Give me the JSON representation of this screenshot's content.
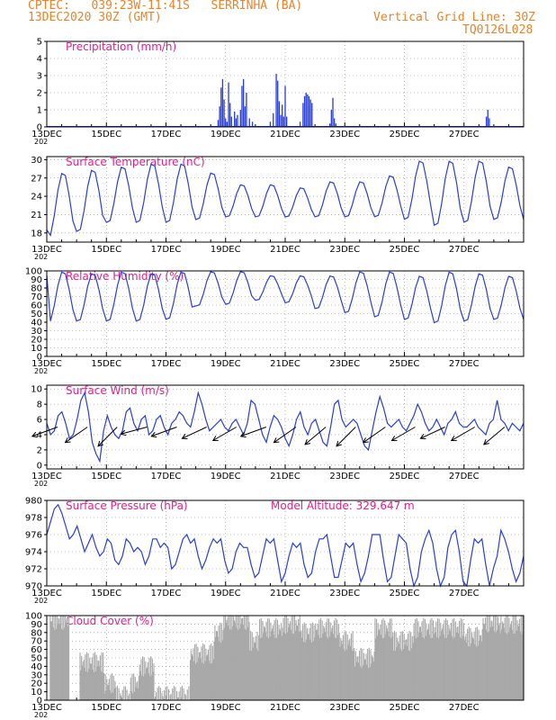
{
  "header": {
    "line1_left": "CPTEC:   039:23W-11:41S   SERRINHA (BA)",
    "line2_left": "13DEC2020 30Z (GMT)",
    "line2_right": "Vertical Grid Line: 30Z",
    "line3_right": "TQ0126L028"
  },
  "x_tick_labels": [
    "13DEC",
    "15DEC",
    "17DEC",
    "19DEC",
    "21DEC",
    "23DEC",
    "25DEC",
    "27DEC"
  ],
  "x_tick_sub": "202",
  "colors": {
    "line": "#2a3ed8",
    "bar": "#2a3ed8",
    "cloud": "#a8a8a8",
    "title": "#e0208a",
    "header": "#e8832a",
    "arrow": "#000000"
  },
  "chart_data": [
    {
      "type": "bar",
      "title": "Precipitation (mm/h)",
      "ylim": [
        0,
        5
      ],
      "yticks": [
        0,
        1,
        2,
        3,
        4,
        5
      ],
      "x_unit": "days since 13DEC 06Z",
      "points": [
        [
          5.75,
          0.4
        ],
        [
          5.8,
          1.2
        ],
        [
          5.85,
          2.3
        ],
        [
          5.9,
          2.8
        ],
        [
          5.95,
          1.6
        ],
        [
          6.0,
          0.5
        ],
        [
          6.05,
          0.3
        ],
        [
          6.1,
          2.6
        ],
        [
          6.15,
          1.4
        ],
        [
          6.2,
          0.6
        ],
        [
          6.3,
          0.9
        ],
        [
          6.35,
          0.5
        ],
        [
          6.4,
          0.7
        ],
        [
          6.5,
          1.0
        ],
        [
          6.55,
          2.4
        ],
        [
          6.6,
          2.8
        ],
        [
          6.65,
          1.2
        ],
        [
          6.7,
          2.0
        ],
        [
          6.8,
          0.5
        ],
        [
          6.9,
          0.3
        ],
        [
          7.5,
          0.3
        ],
        [
          7.6,
          0.8
        ],
        [
          7.7,
          3.1
        ],
        [
          7.75,
          2.7
        ],
        [
          7.8,
          1.5
        ],
        [
          7.85,
          0.7
        ],
        [
          7.9,
          1.3
        ],
        [
          7.95,
          0.6
        ],
        [
          8.0,
          2.4
        ],
        [
          8.05,
          0.6
        ],
        [
          8.5,
          0.3
        ],
        [
          8.6,
          1.4
        ],
        [
          8.65,
          1.8
        ],
        [
          8.7,
          2.0
        ],
        [
          8.75,
          1.9
        ],
        [
          8.8,
          1.8
        ],
        [
          8.85,
          1.6
        ],
        [
          8.9,
          1.4
        ],
        [
          9.5,
          0.2
        ],
        [
          9.55,
          1.0
        ],
        [
          9.6,
          1.7
        ],
        [
          9.65,
          0.5
        ],
        [
          9.7,
          0.2
        ],
        [
          14.75,
          0.6
        ],
        [
          14.8,
          1.0
        ],
        [
          14.85,
          0.5
        ],
        [
          15.0,
          0.1
        ]
      ]
    },
    {
      "type": "line",
      "title": "Surface Temperature (nC)",
      "ylim": [
        16.5,
        30.5
      ],
      "yticks": [
        18,
        21,
        24,
        27,
        30
      ],
      "first_day_value": 18.5,
      "daily_min": [
        17.0,
        18.0,
        19.5,
        19.5,
        19.5,
        20.0,
        20.5,
        20.5,
        20.5,
        20.5,
        20.5,
        20.5,
        20.0,
        19.0,
        19.5,
        20.0
      ],
      "daily_max": [
        28.0,
        28.5,
        29.0,
        29.5,
        29.5,
        28.0,
        26.0,
        26.0,
        25.5,
        26.5,
        26.5,
        27.5,
        30.0,
        30.0,
        30.0,
        29.0
      ]
    },
    {
      "type": "line",
      "title": "Relative Humidity (%)",
      "ylim": [
        0,
        100
      ],
      "yticks": [
        0,
        10,
        20,
        30,
        40,
        50,
        60,
        70,
        80,
        90,
        100
      ],
      "first_day_value": 95,
      "daily_min": [
        38,
        40,
        40,
        40,
        42,
        58,
        60,
        65,
        62,
        55,
        50,
        45,
        42,
        38,
        40,
        42
      ],
      "daily_max": [
        100,
        98,
        100,
        98,
        100,
        100,
        100,
        95,
        95,
        95,
        100,
        100,
        95,
        100,
        98,
        95
      ]
    },
    {
      "type": "line",
      "title": "Surface Wind (m/s)",
      "ylim": [
        -0.5,
        10.5
      ],
      "yticks": [
        0,
        2,
        4,
        6,
        8,
        10
      ],
      "speed": [
        5.5,
        4.0,
        4.5,
        6.5,
        7.0,
        5.5,
        3.5,
        4.0,
        6.0,
        8.5,
        9.5,
        7.0,
        3.0,
        1.5,
        0.5,
        4.5,
        6.5,
        5.0,
        4.0,
        3.5,
        4.5,
        7.0,
        7.5,
        5.5,
        4.5,
        6.0,
        6.5,
        4.0,
        4.5,
        6.0,
        6.5,
        5.0,
        4.0,
        5.5,
        6.0,
        7.0,
        6.5,
        5.5,
        5.0,
        7.0,
        9.5,
        8.0,
        6.0,
        4.5,
        5.0,
        5.5,
        6.0,
        5.0,
        4.5,
        5.5,
        6.0,
        5.0,
        4.0,
        5.5,
        8.5,
        8.0,
        6.0,
        4.0,
        3.0,
        5.0,
        6.5,
        6.0,
        5.0,
        3.5,
        2.5,
        4.0,
        6.0,
        7.0,
        5.0,
        4.0,
        5.5,
        6.0,
        4.5,
        3.0,
        2.5,
        5.0,
        8.0,
        8.5,
        6.0,
        5.0,
        5.5,
        6.0,
        5.5,
        4.0,
        2.5,
        2.0,
        4.5,
        7.0,
        9.0,
        7.5,
        5.5,
        5.0,
        5.5,
        6.0,
        5.0,
        4.5,
        5.5,
        6.5,
        8.0,
        7.0,
        5.5,
        4.5,
        5.0,
        6.0,
        5.0,
        4.0,
        5.5,
        6.0,
        7.0,
        5.5,
        5.0,
        5.0,
        5.5,
        6.0,
        5.0,
        4.5,
        4.0,
        5.5,
        6.0,
        8.5,
        6.0,
        5.5,
        4.5,
        5.5,
        5.0,
        4.5,
        5.5
      ],
      "arrows_day": [
        0.0,
        1.0,
        2.0,
        3.0,
        4.0,
        5.0,
        6.0,
        7.0,
        8.0,
        9.0,
        10.0,
        11.0,
        12.0,
        13.0,
        14.0,
        15.0
      ],
      "arrows_dir_deg": [
        200,
        215,
        225,
        195,
        200,
        205,
        210,
        200,
        215,
        220,
        225,
        215,
        210,
        205,
        210,
        220
      ]
    },
    {
      "type": "line",
      "title": "Surface Pressure (hPa)",
      "annotation": "Model Altitude: 329.647 m",
      "ylim": [
        970,
        980
      ],
      "yticks": [
        970,
        972,
        974,
        976,
        978,
        980
      ],
      "series": [
        976.0,
        977.5,
        979.0,
        979.5,
        978.5,
        977.0,
        975.5,
        976.0,
        977.0,
        975.5,
        974.0,
        975.0,
        976.0,
        974.5,
        973.5,
        974.0,
        975.5,
        975.0,
        973.0,
        972.5,
        973.5,
        975.5,
        975.0,
        974.0,
        974.5,
        974.0,
        972.5,
        973.5,
        975.5,
        975.5,
        974.5,
        975.0,
        974.5,
        972.0,
        972.5,
        974.0,
        975.5,
        976.0,
        975.0,
        975.5,
        973.5,
        972.0,
        973.0,
        974.5,
        975.5,
        975.0,
        975.5,
        973.0,
        971.5,
        972.0,
        974.0,
        975.0,
        974.5,
        974.5,
        972.5,
        971.0,
        971.5,
        973.5,
        975.5,
        975.0,
        975.5,
        973.0,
        970.5,
        971.5,
        973.5,
        975.0,
        974.5,
        975.0,
        972.5,
        971.0,
        971.5,
        974.0,
        975.5,
        975.5,
        976.0,
        973.5,
        971.0,
        971.0,
        973.0,
        975.0,
        974.5,
        975.0,
        972.5,
        970.5,
        971.5,
        973.5,
        976.0,
        976.0,
        976.0,
        973.0,
        970.5,
        971.0,
        973.5,
        976.0,
        975.5,
        975.0,
        972.0,
        970.0,
        971.0,
        974.0,
        975.5,
        976.5,
        975.0,
        972.0,
        970.0,
        971.0,
        974.5,
        976.0,
        976.5,
        974.0,
        970.5,
        970.0,
        973.0,
        975.5,
        975.0,
        975.5,
        972.5,
        970.0,
        972.0,
        973.5,
        976.5,
        975.5,
        974.0,
        972.0,
        970.5,
        971.5,
        973.5
      ],
      "x_start": 0.0,
      "x_end": 16.0
    },
    {
      "type": "area",
      "title": "Cloud Cover (%)",
      "ylim": [
        0,
        100
      ],
      "yticks": [
        0,
        10,
        20,
        30,
        40,
        50,
        60,
        70,
        80,
        90,
        100
      ],
      "segments": [
        [
          0.1,
          0.75,
          95
        ],
        [
          0.75,
          1.1,
          0
        ],
        [
          1.1,
          1.9,
          45
        ],
        [
          1.9,
          2.3,
          20
        ],
        [
          2.3,
          2.8,
          5
        ],
        [
          2.8,
          3.1,
          20
        ],
        [
          3.1,
          3.6,
          40
        ],
        [
          3.6,
          4.8,
          5
        ],
        [
          4.8,
          5.6,
          55
        ],
        [
          5.6,
          5.9,
          80
        ],
        [
          5.9,
          6.8,
          95
        ],
        [
          6.8,
          7.1,
          70
        ],
        [
          7.1,
          7.9,
          85
        ],
        [
          7.9,
          8.5,
          90
        ],
        [
          8.5,
          9.0,
          80
        ],
        [
          9.0,
          9.8,
          85
        ],
        [
          9.8,
          10.3,
          70
        ],
        [
          10.3,
          11.0,
          50
        ],
        [
          11.0,
          11.6,
          85
        ],
        [
          11.6,
          12.3,
          70
        ],
        [
          12.3,
          13.0,
          85
        ],
        [
          13.0,
          14.0,
          85
        ],
        [
          14.0,
          14.6,
          75
        ],
        [
          14.6,
          15.2,
          92
        ],
        [
          15.2,
          16.0,
          90
        ]
      ]
    }
  ]
}
